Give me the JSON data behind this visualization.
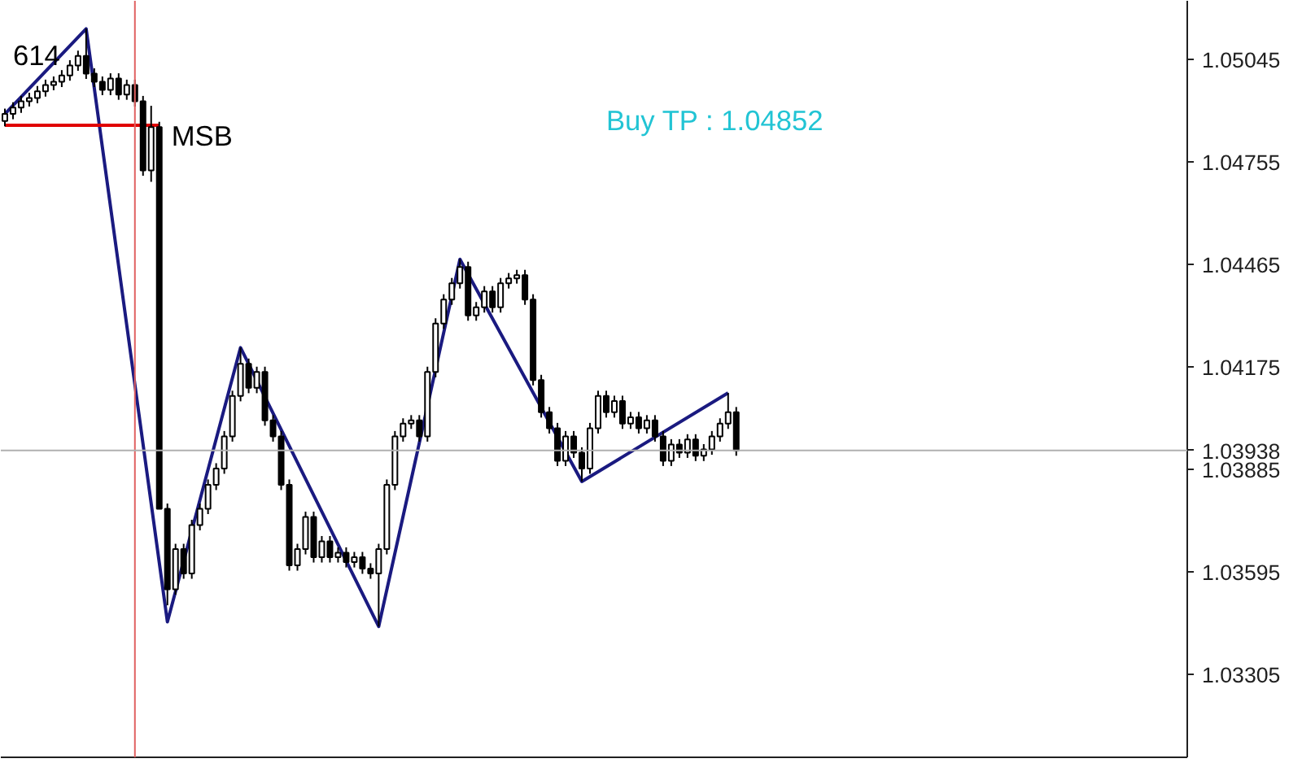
{
  "chart_data": {
    "type": "candlestick",
    "categories": [
      null,
      null,
      null,
      null,
      null,
      null,
      null,
      null,
      null,
      null,
      null,
      null,
      null,
      null,
      null,
      null,
      null,
      null,
      null,
      null,
      null,
      null,
      null,
      null,
      null,
      null,
      null,
      null,
      null,
      null,
      null,
      null,
      null,
      null,
      null,
      null,
      null,
      null,
      null,
      null,
      null,
      null,
      null,
      null,
      null,
      null,
      null,
      null,
      null,
      null,
      null,
      null,
      null,
      null,
      null,
      null,
      null,
      null,
      null,
      null,
      null,
      null,
      null,
      null,
      null,
      null,
      null,
      null,
      null,
      null,
      null,
      null,
      null,
      null,
      null,
      null,
      null,
      null,
      null,
      null,
      null,
      null,
      null,
      null,
      null,
      null,
      null,
      null,
      null,
      null,
      null,
      null,
      null,
      null,
      null,
      null,
      null,
      null,
      null,
      null,
      null,
      null,
      null,
      null,
      null,
      null,
      null,
      null,
      null,
      null,
      null,
      null,
      null,
      null,
      null,
      null,
      null,
      null,
      null,
      null,
      null,
      null,
      null,
      null,
      null,
      null,
      null,
      null,
      null,
      null,
      null,
      null,
      null,
      null,
      null,
      null,
      null,
      null,
      null,
      null,
      null,
      null,
      null,
      null,
      null,
      null
    ],
    "ohlc": [
      [
        1.0487,
        1.04905,
        1.04855,
        1.0489
      ],
      [
        1.0489,
        1.04923,
        1.04875,
        1.04908
      ],
      [
        1.04908,
        1.04941,
        1.04893,
        1.04926
      ],
      [
        1.04926,
        1.0495,
        1.04911,
        1.04935
      ],
      [
        1.04935,
        1.04969,
        1.0492,
        1.04954
      ],
      [
        1.04954,
        1.04987,
        1.04939,
        1.04972
      ],
      [
        1.04972,
        1.04996,
        1.04957,
        1.04981
      ],
      [
        1.04981,
        1.05014,
        1.04966,
        1.04999
      ],
      [
        1.04999,
        1.05042,
        1.04984,
        1.05027
      ],
      [
        1.05027,
        1.05069,
        1.05012,
        1.05054
      ],
      [
        1.05054,
        1.05131,
        1.04989,
        1.05004
      ],
      [
        1.05004,
        1.05019,
        1.04966,
        1.04981
      ],
      [
        1.04981,
        1.04996,
        1.04943,
        1.04958
      ],
      [
        1.04958,
        1.05005,
        1.04943,
        1.0499
      ],
      [
        1.0499,
        1.05005,
        1.0493,
        1.04945
      ],
      [
        1.04945,
        1.04987,
        1.0493,
        1.04972
      ],
      [
        1.04972,
        1.04987,
        1.04911,
        1.04926
      ],
      [
        1.04926,
        1.04941,
        1.04715,
        1.0473
      ],
      [
        1.0473,
        1.04913,
        1.04698,
        1.04853
      ],
      [
        1.04853,
        1.04868,
        1.03773,
        1.03773
      ],
      [
        1.03773,
        1.03788,
        1.035,
        1.03545
      ],
      [
        1.03545,
        1.03674,
        1.0353,
        1.03659
      ],
      [
        1.03659,
        1.03674,
        1.03575,
        1.0359
      ],
      [
        1.0359,
        1.03742,
        1.03575,
        1.03727
      ],
      [
        1.03727,
        1.03788,
        1.03712,
        1.03773
      ],
      [
        1.03773,
        1.03856,
        1.03758,
        1.03841
      ],
      [
        1.03841,
        1.03902,
        1.03826,
        1.03887
      ],
      [
        1.03887,
        1.03993,
        1.03872,
        1.03978
      ],
      [
        1.03978,
        1.04107,
        1.03963,
        1.04092
      ],
      [
        1.04092,
        1.04229,
        1.04077,
        1.04183
      ],
      [
        1.04183,
        1.04198,
        1.041,
        1.04115
      ],
      [
        1.04115,
        1.04175,
        1.041,
        1.0416
      ],
      [
        1.0416,
        1.04175,
        1.04008,
        1.04023
      ],
      [
        1.04023,
        1.04038,
        1.03963,
        1.03978
      ],
      [
        1.03978,
        1.03993,
        1.03826,
        1.03841
      ],
      [
        1.03841,
        1.03856,
        1.03598,
        1.03613
      ],
      [
        1.03613,
        1.03674,
        1.03598,
        1.03659
      ],
      [
        1.03659,
        1.03765,
        1.03644,
        1.0375
      ],
      [
        1.0375,
        1.03765,
        1.03621,
        1.03636
      ],
      [
        1.03636,
        1.03696,
        1.03621,
        1.03681
      ],
      [
        1.03681,
        1.03696,
        1.03621,
        1.03636
      ],
      [
        1.03636,
        1.03664,
        1.03621,
        1.03649
      ],
      [
        1.03649,
        1.03664,
        1.03607,
        1.03622
      ],
      [
        1.03622,
        1.03651,
        1.03607,
        1.03636
      ],
      [
        1.03636,
        1.03651,
        1.03589,
        1.03604
      ],
      [
        1.03604,
        1.03619,
        1.03575,
        1.0359
      ],
      [
        1.0359,
        1.03674,
        1.0344,
        1.03659
      ],
      [
        1.03659,
        1.03856,
        1.03644,
        1.03841
      ],
      [
        1.03841,
        1.03993,
        1.03826,
        1.03978
      ],
      [
        1.03978,
        1.04029,
        1.03963,
        1.04014
      ],
      [
        1.04014,
        1.04038,
        1.03999,
        1.04023
      ],
      [
        1.04023,
        1.04038,
        1.03963,
        1.03978
      ],
      [
        1.03978,
        1.04175,
        1.03963,
        1.0416
      ],
      [
        1.0416,
        1.04312,
        1.04145,
        1.04297
      ],
      [
        1.04297,
        1.0438,
        1.04282,
        1.04365
      ],
      [
        1.04365,
        1.04426,
        1.0435,
        1.04411
      ],
      [
        1.04411,
        1.04479,
        1.04396,
        1.04457
      ],
      [
        1.04457,
        1.04472,
        1.04305,
        1.0432
      ],
      [
        1.0432,
        1.04358,
        1.04305,
        1.04343
      ],
      [
        1.04343,
        1.04403,
        1.04328,
        1.04388
      ],
      [
        1.04388,
        1.04403,
        1.04328,
        1.04343
      ],
      [
        1.04343,
        1.04426,
        1.04328,
        1.04411
      ],
      [
        1.04411,
        1.0444,
        1.04396,
        1.04425
      ],
      [
        1.04425,
        1.04449,
        1.0441,
        1.04434
      ],
      [
        1.04434,
        1.04449,
        1.0435,
        1.04365
      ],
      [
        1.04365,
        1.0438,
        1.04122,
        1.04137
      ],
      [
        1.04137,
        1.04152,
        1.04031,
        1.04046
      ],
      [
        1.04046,
        1.04061,
        1.03986,
        1.04001
      ],
      [
        1.04001,
        1.04016,
        1.03894,
        1.03909
      ],
      [
        1.03909,
        1.03993,
        1.03894,
        1.03978
      ],
      [
        1.03978,
        1.03993,
        1.03917,
        1.03932
      ],
      [
        1.03932,
        1.03947,
        1.0385,
        1.03887
      ],
      [
        1.03887,
        1.04016,
        1.03872,
        1.04001
      ],
      [
        1.04001,
        1.04107,
        1.03986,
        1.04092
      ],
      [
        1.04092,
        1.04107,
        1.04031,
        1.04046
      ],
      [
        1.04046,
        1.04093,
        1.04031,
        1.04078
      ],
      [
        1.04078,
        1.04093,
        1.03999,
        1.04014
      ],
      [
        1.04014,
        1.04047,
        1.03999,
        1.04032
      ],
      [
        1.04032,
        1.04047,
        1.03986,
        1.04001
      ],
      [
        1.04001,
        1.04038,
        1.03986,
        1.04023
      ],
      [
        1.04023,
        1.04038,
        1.03963,
        1.03978
      ],
      [
        1.03978,
        1.03993,
        1.03894,
        1.03909
      ],
      [
        1.03909,
        1.0397,
        1.03894,
        1.03955
      ],
      [
        1.03955,
        1.0397,
        1.03917,
        1.03932
      ],
      [
        1.03932,
        1.03984,
        1.03917,
        1.03969
      ],
      [
        1.03969,
        1.03984,
        1.03908,
        1.03923
      ],
      [
        1.03923,
        1.03956,
        1.03908,
        1.03941
      ],
      [
        1.03941,
        1.03993,
        1.03926,
        1.03978
      ],
      [
        1.03978,
        1.04029,
        1.03963,
        1.04014
      ],
      [
        1.04014,
        1.04101,
        1.03999,
        1.04046
      ],
      [
        1.04046,
        1.04061,
        1.03923,
        1.03938
      ],
      null,
      null,
      null,
      null,
      null,
      null,
      null,
      null,
      null,
      null,
      null,
      null,
      null,
      null,
      null,
      null,
      null,
      null,
      null,
      null,
      null,
      null,
      null,
      null,
      null,
      null,
      null,
      null,
      null,
      null,
      null,
      null,
      null,
      null,
      null,
      null,
      null,
      null,
      null,
      null,
      null,
      null,
      null,
      null,
      null,
      null,
      null,
      null,
      null,
      null,
      null,
      null,
      null,
      null,
      null
    ],
    "series": [
      {
        "type": "line",
        "color": "#1a1a80",
        "values": [
          1.0489,
          null,
          null,
          null,
          null,
          null,
          null,
          null,
          null,
          null,
          1.05131,
          null,
          null,
          null,
          null,
          null,
          null,
          null,
          null,
          null,
          1.03453,
          null,
          null,
          null,
          null,
          null,
          null,
          null,
          null,
          1.04229,
          null,
          null,
          null,
          null,
          null,
          null,
          null,
          null,
          null,
          null,
          null,
          null,
          null,
          null,
          null,
          null,
          1.0344,
          null,
          null,
          null,
          null,
          null,
          null,
          null,
          null,
          null,
          1.04479,
          null,
          null,
          null,
          null,
          null,
          null,
          null,
          null,
          null,
          null,
          null,
          null,
          null,
          null,
          1.0385,
          null,
          null,
          null,
          null,
          null,
          null,
          null,
          null,
          null,
          null,
          null,
          null,
          null,
          null,
          null,
          null,
          null,
          1.04101,
          null,
          null,
          null,
          null,
          null,
          null,
          null,
          null,
          null,
          null,
          null,
          null,
          null,
          null,
          null,
          null,
          null,
          null,
          null,
          null,
          null,
          null,
          null,
          null,
          null,
          null,
          null,
          null,
          null,
          null,
          null,
          null,
          null,
          null,
          null,
          null,
          null,
          null,
          null,
          null,
          null,
          null,
          null,
          null,
          null,
          null,
          null,
          null,
          null,
          null,
          null,
          null,
          null,
          null,
          null,
          null
        ]
      },
      {
        "type": "line",
        "color": "#e00000",
        "values": [
          1.04858,
          1.04858,
          1.04858,
          1.04858,
          1.04858,
          1.04858,
          1.04858,
          1.04858,
          1.04858,
          1.04858,
          1.04858,
          1.04858,
          1.04858,
          1.04858,
          1.04858,
          1.04858,
          1.04858,
          1.04858,
          1.04858,
          1.04858,
          null,
          null,
          null,
          null,
          null,
          null,
          null,
          null,
          null,
          null,
          null,
          null,
          null,
          null,
          null,
          null,
          null,
          null,
          null,
          null,
          null,
          null,
          null,
          null,
          null,
          null,
          null,
          null,
          null,
          null,
          null,
          null,
          null,
          null,
          null,
          null,
          null,
          null,
          null,
          null,
          null,
          null,
          null,
          null,
          null,
          null,
          null,
          null,
          null,
          null,
          null,
          null,
          null,
          null,
          null,
          null,
          null,
          null,
          null,
          null,
          null,
          null,
          null,
          null,
          null,
          null,
          null,
          null,
          null,
          null,
          null,
          null,
          null,
          null,
          null,
          null,
          null,
          null,
          null,
          null,
          null,
          null,
          null,
          null,
          null,
          null,
          null,
          null,
          null,
          null,
          null,
          null,
          null,
          null,
          null,
          null,
          null,
          null,
          null,
          null,
          null,
          null,
          null,
          null,
          null,
          null,
          null,
          null,
          null,
          null,
          null,
          null,
          null,
          null,
          null,
          null,
          null,
          null,
          null,
          null,
          null,
          null,
          null,
          null,
          null,
          null
        ]
      }
    ],
    "ref_lines": [
      {
        "axis": "y",
        "value": 1.03938,
        "label": "1.03938",
        "color": "#b0b0b0"
      }
    ],
    "annotations": [
      "614",
      "MSB",
      "Buy TP : 1.04852"
    ],
    "ylim": [
      1.0307,
      1.0521
    ],
    "yticks": [
      {
        "value": 1.05045,
        "label": "1.05045"
      },
      {
        "value": 1.04755,
        "label": "1.04755"
      },
      {
        "value": 1.04465,
        "label": "1.04465"
      },
      {
        "value": 1.04175,
        "label": "1.04175"
      },
      {
        "value": 1.03885,
        "label": "1.03885"
      },
      {
        "value": 1.03595,
        "label": "1.03595"
      },
      {
        "value": 1.03305,
        "label": "1.03305"
      }
    ],
    "tick_labels": "y",
    "grid": false
  }
}
